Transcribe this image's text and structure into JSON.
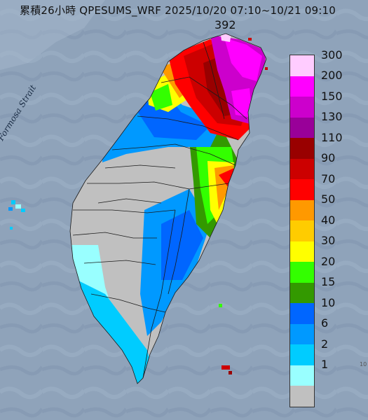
{
  "title": "累積26小時 QPESUMS_WRF 2025/10/20 07:10~10/21 09:10",
  "peak_value": "392",
  "strait_label": "Formosa Strait",
  "corner_mark": "10",
  "legend": [
    {
      "label": "300",
      "color": "#ffccff"
    },
    {
      "label": "200",
      "color": "#ff00ff"
    },
    {
      "label": "150",
      "color": "#cc00cc"
    },
    {
      "label": "130",
      "color": "#990099"
    },
    {
      "label": "110",
      "color": "#990000"
    },
    {
      "label": "90",
      "color": "#cc0000"
    },
    {
      "label": "70",
      "color": "#ff0000"
    },
    {
      "label": "50",
      "color": "#ff9900"
    },
    {
      "label": "40",
      "color": "#ffcc00"
    },
    {
      "label": "30",
      "color": "#ffff00"
    },
    {
      "label": "20",
      "color": "#33ff00"
    },
    {
      "label": "15",
      "color": "#339900"
    },
    {
      "label": "10",
      "color": "#0066ff"
    },
    {
      "label": "6",
      "color": "#0099ff"
    },
    {
      "label": "2",
      "color": "#00ccff"
    },
    {
      "label": "1",
      "color": "#99ffff"
    },
    {
      "label": "",
      "color": "#c0c0c0"
    }
  ]
}
